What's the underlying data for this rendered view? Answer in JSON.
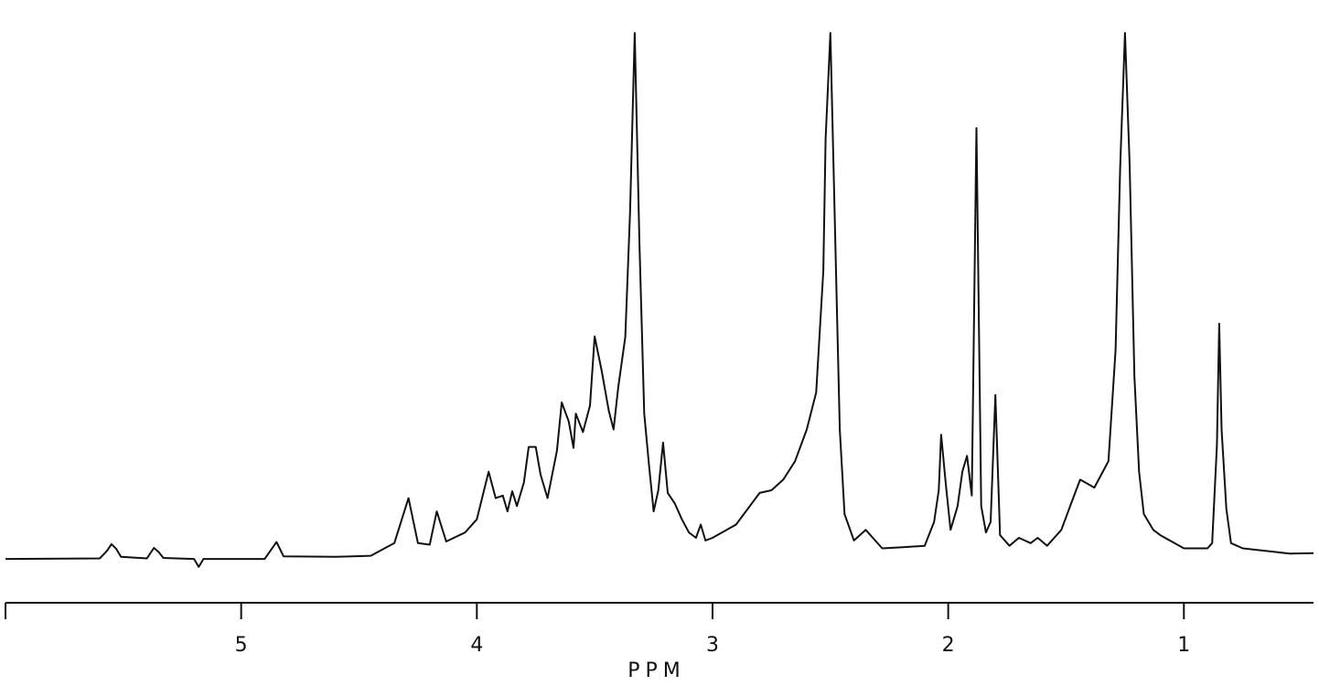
{
  "chart_data": {
    "type": "line",
    "title": "",
    "xlabel": "PPM",
    "ylabel": "",
    "x_reversed": true,
    "xlim": [
      6.0,
      0.45
    ],
    "ylim": [
      0,
      100
    ],
    "grid": false,
    "legend": "none",
    "ticks": [
      {
        "value": 6,
        "label": ""
      },
      {
        "value": 5,
        "label": "5"
      },
      {
        "value": 4,
        "label": "4"
      },
      {
        "value": 3,
        "label": "3"
      },
      {
        "value": 2,
        "label": "2"
      },
      {
        "value": 1,
        "label": "1"
      }
    ],
    "series": [
      {
        "name": "",
        "clipped_peaks_at_ppm": [
          3.33,
          2.5,
          1.25
        ],
        "points": [
          [
            6.0,
            0.5
          ],
          [
            5.6,
            0.6
          ],
          [
            5.57,
            2.0
          ],
          [
            5.55,
            3.3
          ],
          [
            5.53,
            2.4
          ],
          [
            5.51,
            0.9
          ],
          [
            5.4,
            0.6
          ],
          [
            5.37,
            2.6
          ],
          [
            5.35,
            1.8
          ],
          [
            5.33,
            0.7
          ],
          [
            5.2,
            0.5
          ],
          [
            5.18,
            -1.0
          ],
          [
            5.16,
            0.5
          ],
          [
            4.9,
            0.5
          ],
          [
            4.85,
            3.7
          ],
          [
            4.82,
            1.0
          ],
          [
            4.6,
            0.9
          ],
          [
            4.45,
            1.1
          ],
          [
            4.35,
            3.5
          ],
          [
            4.29,
            12.0
          ],
          [
            4.25,
            3.5
          ],
          [
            4.2,
            3.2
          ],
          [
            4.17,
            9.5
          ],
          [
            4.13,
            3.8
          ],
          [
            4.05,
            5.5
          ],
          [
            4.0,
            8.0
          ],
          [
            3.95,
            17.0
          ],
          [
            3.92,
            12.0
          ],
          [
            3.89,
            12.5
          ],
          [
            3.87,
            9.5
          ],
          [
            3.85,
            13.3
          ],
          [
            3.83,
            10.5
          ],
          [
            3.8,
            15.0
          ],
          [
            3.78,
            21.7
          ],
          [
            3.75,
            21.7
          ],
          [
            3.73,
            16.5
          ],
          [
            3.7,
            12.0
          ],
          [
            3.66,
            21.0
          ],
          [
            3.64,
            30.1
          ],
          [
            3.61,
            26.5
          ],
          [
            3.59,
            21.5
          ],
          [
            3.58,
            28.0
          ],
          [
            3.55,
            24.5
          ],
          [
            3.52,
            29.5
          ],
          [
            3.5,
            42.6
          ],
          [
            3.47,
            36.0
          ],
          [
            3.44,
            28.5
          ],
          [
            3.42,
            25.0
          ],
          [
            3.4,
            33.0
          ],
          [
            3.37,
            42.5
          ],
          [
            3.35,
            66.0
          ],
          [
            3.33,
            100
          ],
          [
            3.31,
            60.0
          ],
          [
            3.29,
            28.0
          ],
          [
            3.27,
            18.5
          ],
          [
            3.25,
            9.5
          ],
          [
            3.23,
            13.5
          ],
          [
            3.21,
            22.5
          ],
          [
            3.19,
            13.0
          ],
          [
            3.16,
            11.0
          ],
          [
            3.13,
            8.0
          ],
          [
            3.1,
            5.5
          ],
          [
            3.07,
            4.5
          ],
          [
            3.05,
            7.0
          ],
          [
            3.03,
            4.0
          ],
          [
            3.0,
            4.5
          ],
          [
            2.9,
            7.0
          ],
          [
            2.8,
            13.0
          ],
          [
            2.75,
            13.5
          ],
          [
            2.7,
            15.5
          ],
          [
            2.65,
            19.0
          ],
          [
            2.6,
            25.0
          ],
          [
            2.56,
            32.0
          ],
          [
            2.53,
            55.0
          ],
          [
            2.52,
            80.0
          ],
          [
            2.5,
            100
          ],
          [
            2.48,
            62.0
          ],
          [
            2.46,
            25.0
          ],
          [
            2.44,
            9.0
          ],
          [
            2.4,
            4.0
          ],
          [
            2.35,
            6.0
          ],
          [
            2.32,
            4.5
          ],
          [
            2.28,
            2.5
          ],
          [
            2.2,
            2.7
          ],
          [
            2.1,
            3.0
          ],
          [
            2.06,
            7.5
          ],
          [
            2.04,
            13.5
          ],
          [
            2.03,
            24.0
          ],
          [
            2.01,
            14.5
          ],
          [
            1.99,
            6.0
          ],
          [
            1.96,
            10.5
          ],
          [
            1.94,
            17.0
          ],
          [
            1.92,
            20.0
          ],
          [
            1.9,
            12.5
          ],
          [
            1.88,
            82.0
          ],
          [
            1.86,
            10.5
          ],
          [
            1.84,
            5.5
          ],
          [
            1.82,
            7.5
          ],
          [
            1.8,
            31.5
          ],
          [
            1.78,
            5.0
          ],
          [
            1.74,
            3.0
          ],
          [
            1.7,
            4.5
          ],
          [
            1.65,
            3.5
          ],
          [
            1.62,
            4.5
          ],
          [
            1.58,
            3.0
          ],
          [
            1.52,
            6.0
          ],
          [
            1.47,
            12.0
          ],
          [
            1.44,
            15.5
          ],
          [
            1.42,
            15.0
          ],
          [
            1.38,
            14.0
          ],
          [
            1.35,
            16.5
          ],
          [
            1.32,
            19.0
          ],
          [
            1.29,
            40.0
          ],
          [
            1.27,
            75.0
          ],
          [
            1.25,
            100
          ],
          [
            1.23,
            75.0
          ],
          [
            1.21,
            35.0
          ],
          [
            1.19,
            17.0
          ],
          [
            1.17,
            9.0
          ],
          [
            1.13,
            6.0
          ],
          [
            1.1,
            5.0
          ],
          [
            1.0,
            2.5
          ],
          [
            0.9,
            2.5
          ],
          [
            0.88,
            3.5
          ],
          [
            0.86,
            22.0
          ],
          [
            0.85,
            45.0
          ],
          [
            0.84,
            25.0
          ],
          [
            0.82,
            10.0
          ],
          [
            0.8,
            3.5
          ],
          [
            0.75,
            2.5
          ],
          [
            0.65,
            2.0
          ],
          [
            0.55,
            1.5
          ],
          [
            0.45,
            1.6
          ]
        ]
      }
    ]
  }
}
